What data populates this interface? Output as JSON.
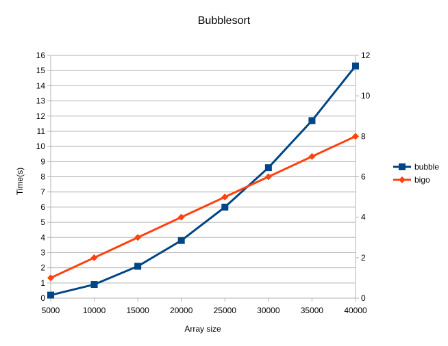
{
  "chart_data": {
    "type": "line",
    "title": "Bubblesort",
    "xlabel": "Array size",
    "ylabel": "Time(s)",
    "x": [
      5000,
      10000,
      15000,
      20000,
      25000,
      30000,
      35000,
      40000
    ],
    "ylim": [
      0,
      16
    ],
    "y2lim": [
      0,
      12
    ],
    "yticks": [
      0,
      1,
      2,
      3,
      4,
      5,
      6,
      7,
      8,
      9,
      10,
      11,
      12,
      13,
      14,
      15,
      16
    ],
    "y2ticks": [
      0,
      2,
      4,
      6,
      8,
      10,
      12
    ],
    "grid": true,
    "legend_position": "right",
    "series": [
      {
        "name": "bubble",
        "axis": "left",
        "color": "#004586",
        "marker": "square",
        "values": [
          0.2,
          0.9,
          2.1,
          3.8,
          6.0,
          8.6,
          11.7,
          15.3
        ]
      },
      {
        "name": "bigo",
        "axis": "right",
        "color": "#ff420e",
        "marker": "diamond",
        "values": [
          1.0,
          2.0,
          3.0,
          4.0,
          5.0,
          6.0,
          7.0,
          8.0
        ]
      }
    ]
  }
}
